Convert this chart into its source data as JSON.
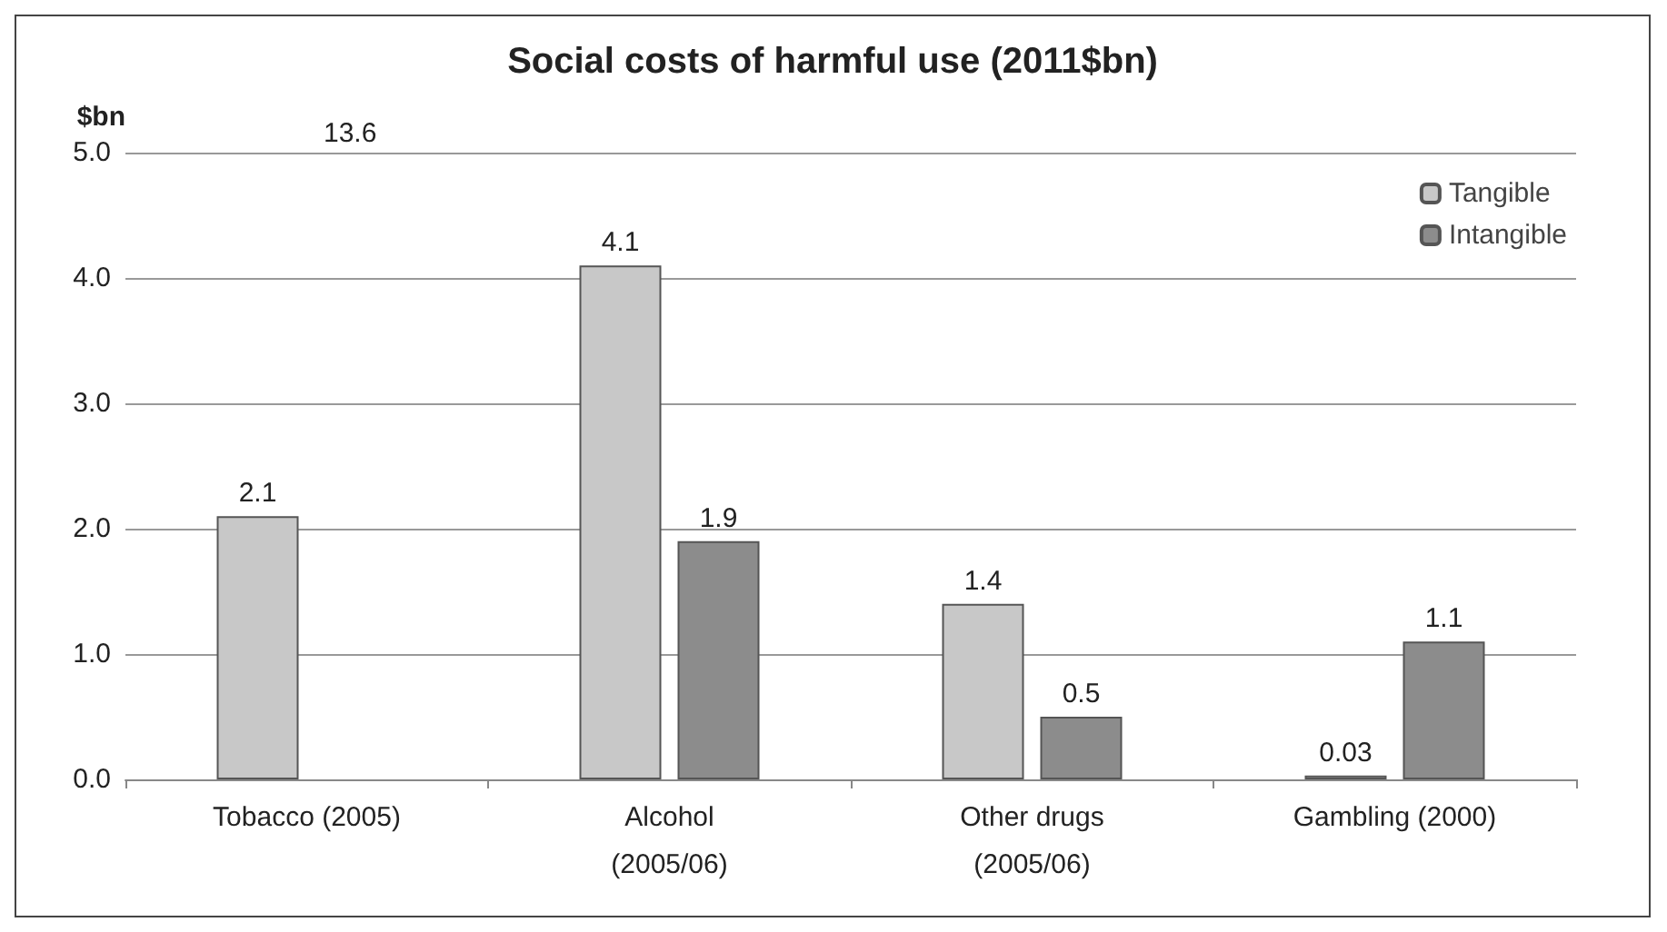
{
  "chart_data": {
    "type": "bar",
    "title": "Social costs of harmful use (2011$bn)",
    "ylabel": "$bn",
    "categories": [
      "Tobacco (2005)",
      "Alcohol\n(2005/06)",
      "Other drugs\n(2005/06)",
      "Gambling (2000)"
    ],
    "series": [
      {
        "name": "Tangible",
        "color": "#c8c8c8",
        "values": [
          2.1,
          4.1,
          1.4,
          0.03
        ]
      },
      {
        "name": "Intangible",
        "color": "#8c8c8c",
        "values": [
          null,
          1.9,
          0.5,
          1.1
        ]
      }
    ],
    "annotations": [
      "13.6"
    ],
    "ylim": [
      0,
      5
    ],
    "yticks": [
      {
        "value": 0,
        "label": "0.0"
      },
      {
        "value": 1,
        "label": "1.0"
      },
      {
        "value": 2,
        "label": "2.0"
      },
      {
        "value": 3,
        "label": "3.0"
      },
      {
        "value": 4,
        "label": "4.0"
      },
      {
        "value": 5,
        "label": "5.0"
      }
    ],
    "grid": "y",
    "legend": "top right",
    "data_labels": true
  }
}
